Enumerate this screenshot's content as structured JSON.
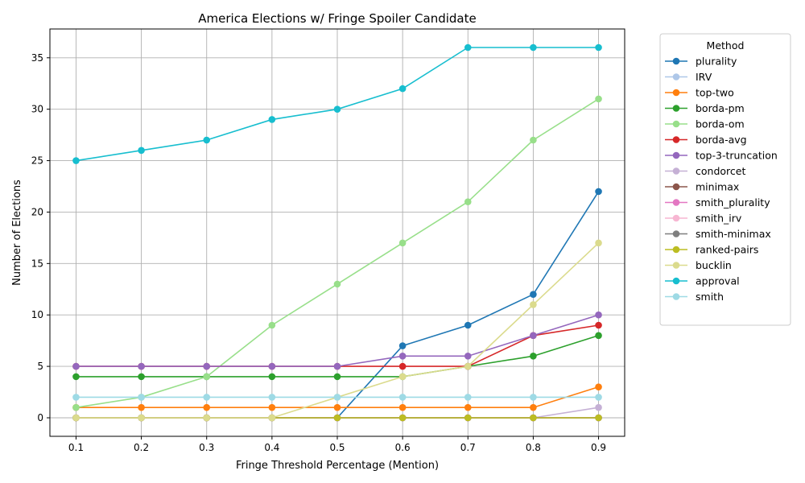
{
  "chart_data": {
    "type": "line",
    "title": "America Elections w/ Fringe Spoiler Candidate",
    "xlabel": "Fringe Threshold Percentage (Mention)",
    "ylabel": "Number of Elections",
    "x": [
      0.1,
      0.2,
      0.3,
      0.4,
      0.5,
      0.6,
      0.7,
      0.8,
      0.9
    ],
    "x_tick_labels": [
      "0.1",
      "0.2",
      "0.3",
      "0.4",
      "0.5",
      "0.6",
      "0.7",
      "0.8",
      "0.9"
    ],
    "y_ticks": [
      0,
      5,
      10,
      15,
      20,
      25,
      30,
      35
    ],
    "y_tick_labels": [
      "0",
      "5",
      "10",
      "15",
      "20",
      "25",
      "30",
      "35"
    ],
    "xlim": [
      0.06,
      0.94
    ],
    "ylim": [
      -1.8,
      37.8
    ],
    "grid": true,
    "legend_title": "Method",
    "legend_position": "outside-right",
    "series": [
      {
        "name": "plurality",
        "color": "#1f77b4",
        "values": [
          0,
          0,
          0,
          0,
          0,
          7,
          9,
          12,
          22
        ]
      },
      {
        "name": "IRV",
        "color": "#aec7e8",
        "values": [
          0,
          0,
          0,
          0,
          0,
          0,
          0,
          0,
          0
        ]
      },
      {
        "name": "top-two",
        "color": "#ff7f0e",
        "values": [
          1,
          1,
          1,
          1,
          1,
          1,
          1,
          1,
          3
        ]
      },
      {
        "name": "borda-pm",
        "color": "#2ca02c",
        "values": [
          4,
          4,
          4,
          4,
          4,
          4,
          5,
          6,
          8
        ]
      },
      {
        "name": "borda-om",
        "color": "#98df8a",
        "values": [
          1,
          2,
          4,
          9,
          13,
          17,
          21,
          27,
          31
        ]
      },
      {
        "name": "borda-avg",
        "color": "#d62728",
        "values": [
          5,
          5,
          5,
          5,
          5,
          5,
          5,
          8,
          9
        ]
      },
      {
        "name": "top-3-truncation",
        "color": "#9467bd",
        "values": [
          5,
          5,
          5,
          5,
          5,
          6,
          6,
          8,
          10
        ]
      },
      {
        "name": "condorcet",
        "color": "#c5b0d5",
        "values": [
          0,
          0,
          0,
          0,
          0,
          0,
          0,
          0,
          1
        ]
      },
      {
        "name": "minimax",
        "color": "#8c564b",
        "values": [
          0,
          0,
          0,
          0,
          0,
          0,
          0,
          0,
          0
        ]
      },
      {
        "name": "smith_plurality",
        "color": "#e377c2",
        "values": [
          0,
          0,
          0,
          0,
          0,
          0,
          0,
          0,
          0
        ]
      },
      {
        "name": "smith_irv",
        "color": "#f7b6d2",
        "values": [
          0,
          0,
          0,
          0,
          0,
          0,
          0,
          0,
          0
        ]
      },
      {
        "name": "smith-minimax",
        "color": "#7f7f7f",
        "values": [
          0,
          0,
          0,
          0,
          0,
          0,
          0,
          0,
          0
        ]
      },
      {
        "name": "ranked-pairs",
        "color": "#bcbd22",
        "values": [
          0,
          0,
          0,
          0,
          0,
          0,
          0,
          0,
          0
        ]
      },
      {
        "name": "bucklin",
        "color": "#dbdb8d",
        "values": [
          0,
          0,
          0,
          0,
          2,
          4,
          5,
          11,
          17
        ]
      },
      {
        "name": "approval",
        "color": "#17becf",
        "values": [
          25,
          26,
          27,
          29,
          30,
          32,
          36,
          36,
          36
        ]
      },
      {
        "name": "smith",
        "color": "#9edae5",
        "values": [
          2,
          2,
          2,
          2,
          2,
          2,
          2,
          2,
          2
        ]
      }
    ]
  }
}
